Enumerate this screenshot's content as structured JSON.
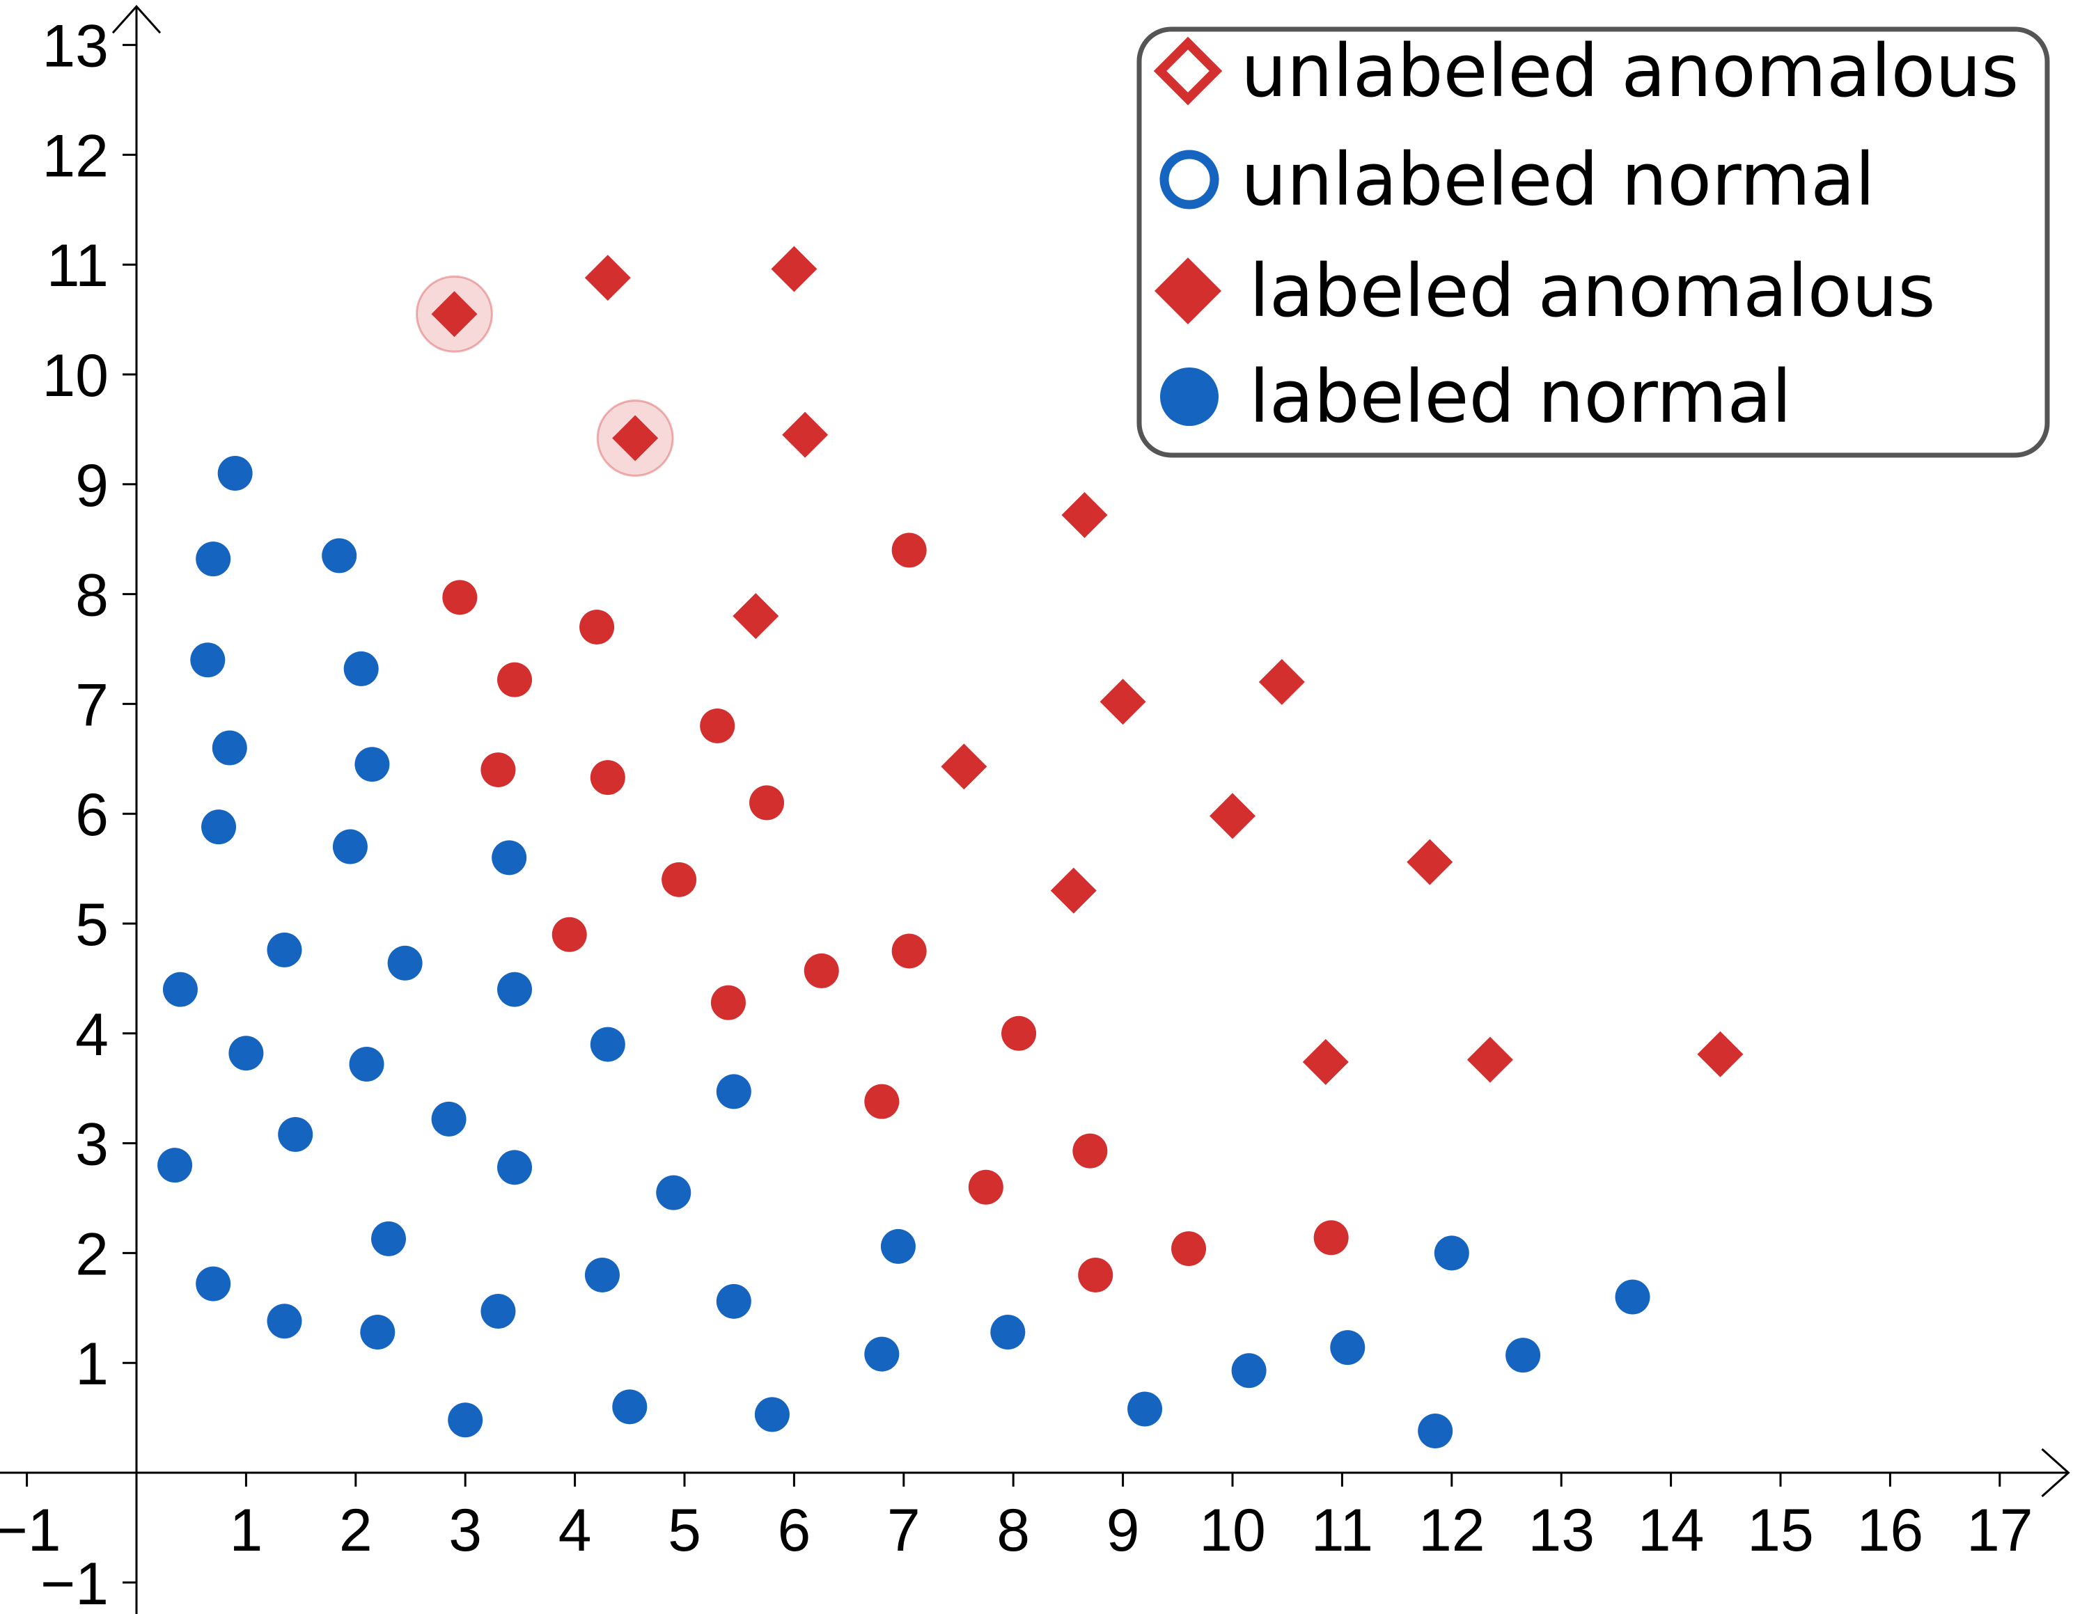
{
  "chart_data": {
    "type": "scatter",
    "xlim": [
      -1.25,
      17.5
    ],
    "ylim": [
      -1.3,
      13.3
    ],
    "x_ticks": [
      -1,
      1,
      2,
      3,
      4,
      5,
      6,
      7,
      8,
      9,
      10,
      11,
      12,
      13,
      14,
      15,
      16,
      17
    ],
    "y_ticks": [
      -1,
      1,
      2,
      3,
      4,
      5,
      6,
      7,
      8,
      9,
      10,
      11,
      12,
      13
    ],
    "x_tick_labels": [
      "−1",
      "1",
      "2",
      "3",
      "4",
      "5",
      "6",
      "7",
      "8",
      "9",
      "10",
      "11",
      "12",
      "13",
      "14",
      "15",
      "16",
      "17"
    ],
    "y_tick_labels": [
      "−1",
      "1",
      "2",
      "3",
      "4",
      "5",
      "6",
      "7",
      "8",
      "9",
      "10",
      "11",
      "12",
      "13"
    ],
    "grid": false,
    "legend_position": "top-right",
    "highlighted_points": [
      [
        2.9,
        10.55
      ],
      [
        4.55,
        9.42
      ]
    ],
    "series": [
      {
        "name": "unlabeled anomalous",
        "marker": "hollow-diamond",
        "color": "#d32f2f",
        "points": [
          [
            5.4,
            4.28
          ],
          [
            7.05,
            8.4
          ],
          [
            8.05,
            4.0
          ],
          [
            2.95,
            7.97
          ],
          [
            4.2,
            7.7
          ],
          [
            3.45,
            7.22
          ],
          [
            5.3,
            6.8
          ],
          [
            3.3,
            6.4
          ],
          [
            4.3,
            6.33
          ],
          [
            5.75,
            6.1
          ],
          [
            4.95,
            5.4
          ],
          [
            3.95,
            4.9
          ],
          [
            6.25,
            4.57
          ],
          [
            7.05,
            4.75
          ],
          [
            6.8,
            3.38
          ],
          [
            7.75,
            2.6
          ],
          [
            8.7,
            2.93
          ],
          [
            9.6,
            2.04
          ],
          [
            10.9,
            2.14
          ],
          [
            8.75,
            1.8
          ]
        ]
      },
      {
        "name": "unlabeled normal",
        "marker": "hollow-circle",
        "color": "#1565c0",
        "points": [
          [
            0.9,
            9.1
          ],
          [
            0.7,
            8.32
          ],
          [
            1.85,
            8.35
          ],
          [
            0.65,
            7.4
          ],
          [
            2.05,
            7.32
          ],
          [
            0.85,
            6.6
          ],
          [
            2.15,
            6.45
          ],
          [
            0.75,
            5.88
          ],
          [
            1.95,
            5.7
          ],
          [
            3.4,
            5.6
          ],
          [
            1.35,
            4.76
          ],
          [
            2.45,
            4.64
          ],
          [
            0.4,
            4.4
          ],
          [
            3.45,
            4.4
          ],
          [
            1.0,
            3.82
          ],
          [
            2.1,
            3.72
          ],
          [
            4.3,
            3.9
          ],
          [
            1.45,
            3.08
          ],
          [
            2.85,
            3.22
          ],
          [
            3.45,
            2.78
          ],
          [
            5.45,
            3.47
          ],
          [
            0.35,
            2.8
          ],
          [
            4.9,
            2.55
          ],
          [
            2.3,
            2.13
          ],
          [
            0.7,
            1.72
          ],
          [
            4.25,
            1.8
          ],
          [
            1.35,
            1.38
          ],
          [
            2.2,
            1.28
          ],
          [
            3.3,
            1.47
          ],
          [
            5.45,
            1.56
          ],
          [
            6.95,
            2.06
          ],
          [
            7.95,
            1.28
          ],
          [
            6.8,
            1.08
          ],
          [
            3.0,
            0.48
          ],
          [
            4.5,
            0.6
          ],
          [
            5.8,
            0.53
          ],
          [
            9.2,
            0.58
          ],
          [
            10.15,
            0.93
          ],
          [
            11.05,
            1.14
          ],
          [
            11.85,
            0.38
          ],
          [
            12.0,
            2.0
          ],
          [
            12.65,
            1.07
          ],
          [
            13.65,
            1.6
          ]
        ]
      },
      {
        "name": "labeled anomalous",
        "marker": "filled-diamond",
        "color": "#d32f2f",
        "points": [
          [
            2.9,
            10.55
          ],
          [
            4.55,
            9.42
          ],
          [
            4.3,
            10.88
          ],
          [
            6.0,
            10.96
          ],
          [
            6.1,
            9.45
          ],
          [
            8.65,
            8.72
          ],
          [
            5.65,
            7.8
          ],
          [
            9.0,
            7.02
          ],
          [
            10.45,
            7.2
          ],
          [
            7.55,
            6.43
          ],
          [
            10.0,
            5.98
          ],
          [
            11.8,
            5.56
          ],
          [
            8.55,
            5.3
          ],
          [
            10.85,
            3.74
          ],
          [
            12.35,
            3.76
          ],
          [
            14.45,
            3.81
          ]
        ]
      },
      {
        "name": "labeled normal",
        "marker": "filled-circle",
        "color": "#1565c0",
        "points": []
      }
    ]
  }
}
